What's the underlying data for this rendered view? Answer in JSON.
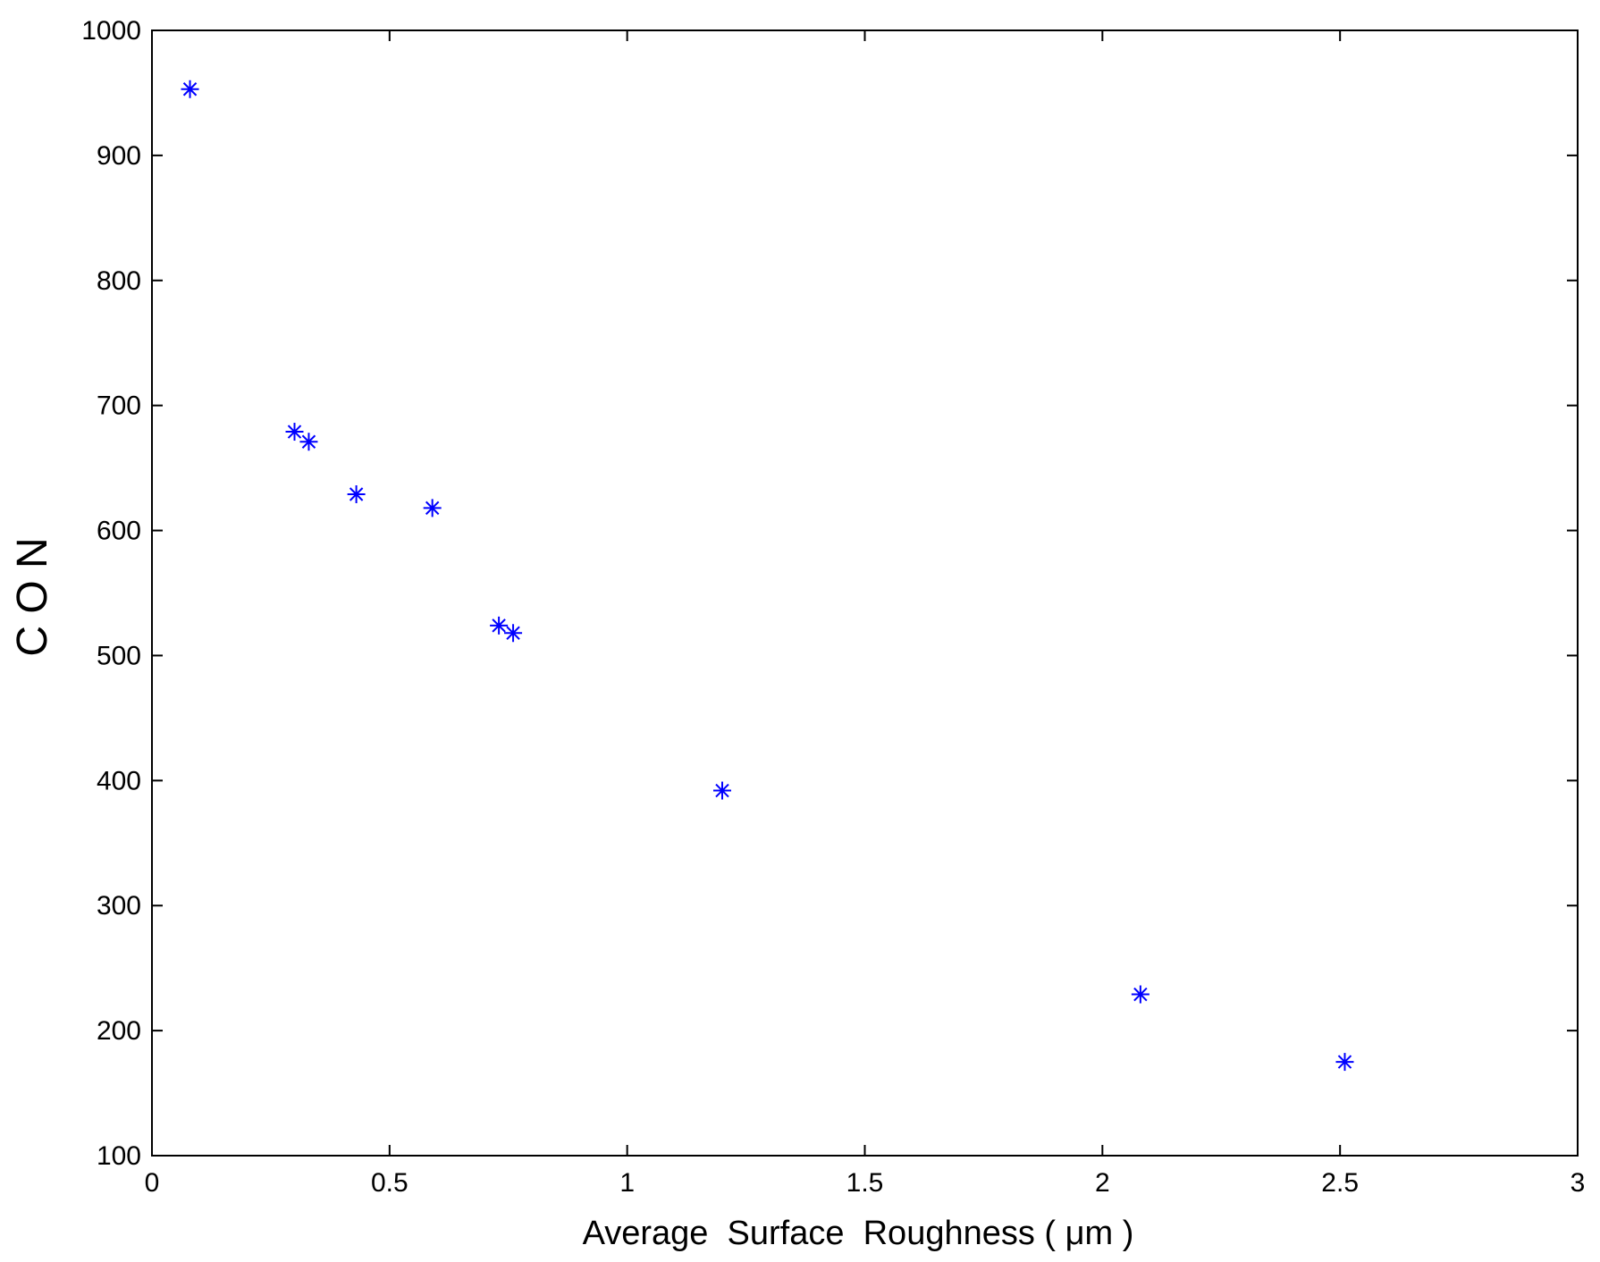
{
  "chart_data": {
    "type": "scatter",
    "title": "",
    "xlabel": "Average  Surface  Roughness ( μm )",
    "ylabel": "C O N",
    "xlim": [
      0,
      3
    ],
    "ylim": [
      100,
      1000
    ],
    "xticks": [
      "0",
      "0.5",
      "1",
      "1.5",
      "2",
      "2.5",
      "3"
    ],
    "yticks": [
      "100",
      "200",
      "300",
      "400",
      "500",
      "600",
      "700",
      "800",
      "900",
      "1000"
    ],
    "grid": false,
    "legend": "none",
    "marker": "asterisk",
    "marker_color": "#0000ff",
    "series": [
      {
        "points": [
          {
            "x": 0.08,
            "y": 953
          },
          {
            "x": 0.3,
            "y": 679
          },
          {
            "x": 0.33,
            "y": 671
          },
          {
            "x": 0.43,
            "y": 629
          },
          {
            "x": 0.59,
            "y": 618
          },
          {
            "x": 0.73,
            "y": 524
          },
          {
            "x": 0.76,
            "y": 518
          },
          {
            "x": 1.2,
            "y": 392
          },
          {
            "x": 2.08,
            "y": 229
          },
          {
            "x": 2.51,
            "y": 175
          }
        ]
      }
    ]
  }
}
